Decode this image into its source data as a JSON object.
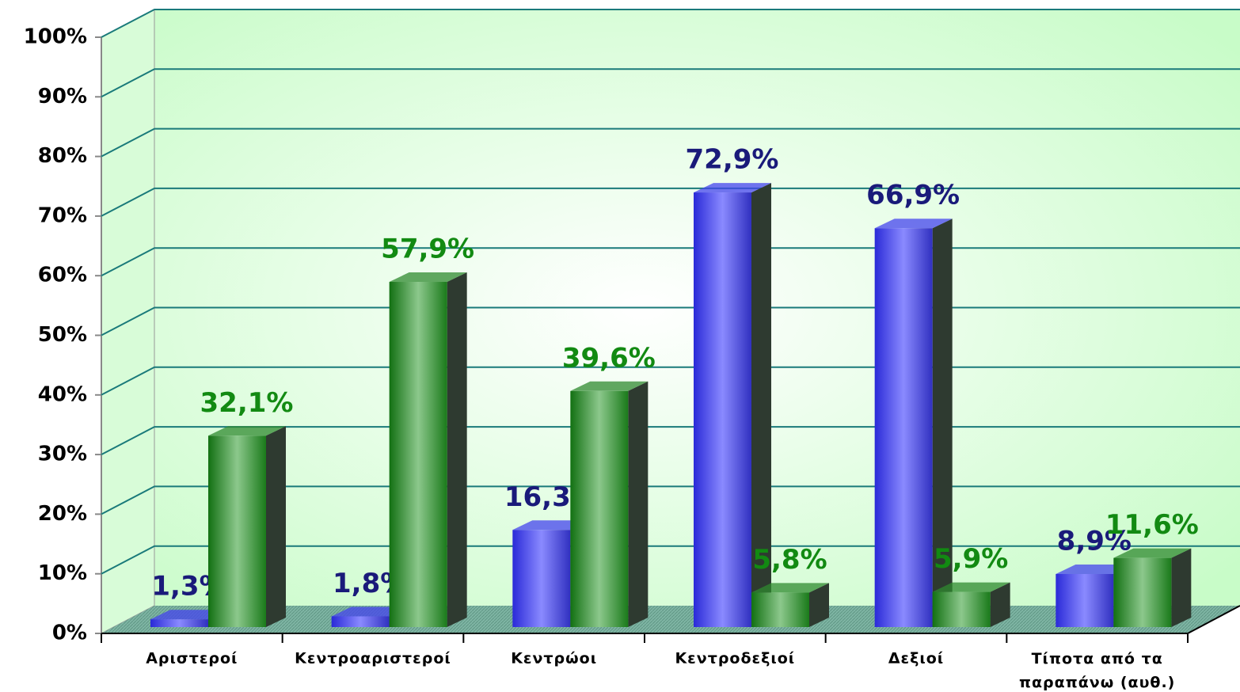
{
  "chart_data": {
    "type": "bar3d",
    "categories": [
      "Αριστεροί",
      "Κεντροαριστεροί",
      "Κεντρώοι",
      "Κεντροδεξιοί",
      "Δεξιοί",
      "Τίποτα από τα\nπαραπάνω (αυθ.)"
    ],
    "series": [
      {
        "color": "#4444ee",
        "label_color": "#1a1a7a",
        "values": [
          1.3,
          1.8,
          16.3,
          72.9,
          66.9,
          8.9
        ],
        "value_labels": [
          "1,3%",
          "1,8%",
          "16,3%",
          "72,9%",
          "66,9%",
          "8,9%"
        ]
      },
      {
        "color": "#2f8a2f",
        "label_color": "#128a12",
        "values": [
          32.1,
          57.9,
          39.6,
          5.8,
          5.9,
          11.6
        ],
        "value_labels": [
          "32,1%",
          "57,9%",
          "39,6%",
          "5,8%",
          "5,9%",
          "11,6%"
        ]
      }
    ],
    "ylim": [
      0,
      100
    ],
    "yticks": [
      {
        "value": 0,
        "label": "0%"
      },
      {
        "value": 10,
        "label": "10%"
      },
      {
        "value": 20,
        "label": "20%"
      },
      {
        "value": 30,
        "label": "30%"
      },
      {
        "value": 40,
        "label": "40%"
      },
      {
        "value": 50,
        "label": "50%"
      },
      {
        "value": 60,
        "label": "60%"
      },
      {
        "value": 70,
        "label": "70%"
      },
      {
        "value": 80,
        "label": "80%"
      },
      {
        "value": 90,
        "label": "90%"
      },
      {
        "value": 100,
        "label": "100%"
      }
    ],
    "grid": true
  }
}
